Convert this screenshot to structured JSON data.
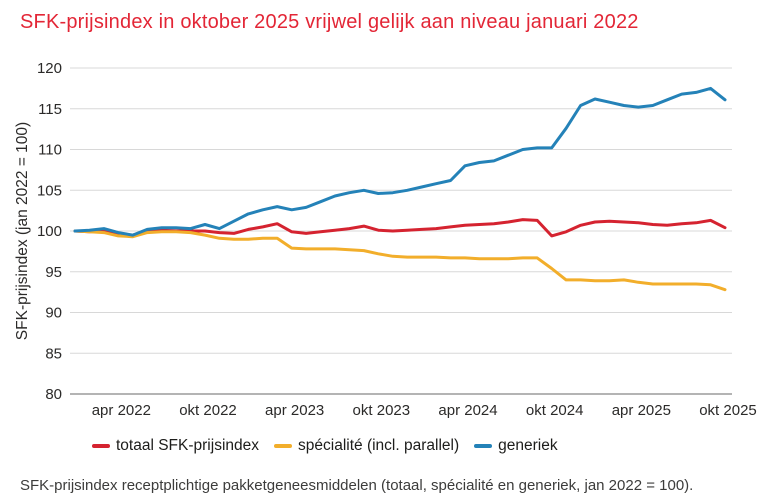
{
  "title": "SFK-prijsindex in oktober 2025 vrijwel gelijk aan niveau januari 2022",
  "footer": "SFK-prijsindex receptplichtige pakketgeneesmiddelen (totaal, spécialité en generiek, jan 2022 = 100).",
  "colors": {
    "title_red": "#e32636",
    "totaal": "#d52330",
    "specialite": "#f2ae2b",
    "generiek": "#2482b8",
    "grid": "#d8d8d8",
    "axis": "#9c9c9c",
    "text": "#2b2a29"
  },
  "chart_data": {
    "type": "line",
    "title": "SFK-prijsindex in oktober 2025 vrijwel gelijk aan niveau januari 2022",
    "xlabel": "",
    "ylabel": "SFK-prijsindex (jan 2022 = 100)",
    "ylim": [
      80,
      120
    ],
    "yticks": [
      80,
      85,
      90,
      95,
      100,
      105,
      110,
      115,
      120
    ],
    "grid": true,
    "legend_position": "bottom",
    "x": [
      "jan 2022",
      "feb 2022",
      "mrt 2022",
      "apr 2022",
      "mei 2022",
      "jun 2022",
      "jul 2022",
      "aug 2022",
      "sep 2022",
      "okt 2022",
      "nov 2022",
      "dec 2022",
      "jan 2023",
      "feb 2023",
      "mrt 2023",
      "apr 2023",
      "mei 2023",
      "jun 2023",
      "jul 2023",
      "aug 2023",
      "sep 2023",
      "okt 2023",
      "nov 2023",
      "dec 2023",
      "jan 2024",
      "feb 2024",
      "mrt 2024",
      "apr 2024",
      "mei 2024",
      "jun 2024",
      "jul 2024",
      "aug 2024",
      "sep 2024",
      "okt 2024",
      "nov 2024",
      "dec 2024",
      "jan 2025",
      "feb 2025",
      "mrt 2025",
      "apr 2025",
      "mei 2025",
      "jun 2025",
      "jul 2025",
      "aug 2025",
      "sep 2025",
      "okt 2025"
    ],
    "xticks": [
      {
        "label": "apr 2022",
        "index": 3
      },
      {
        "label": "okt 2022",
        "index": 9
      },
      {
        "label": "apr 2023",
        "index": 15
      },
      {
        "label": "okt 2023",
        "index": 21
      },
      {
        "label": "apr 2024",
        "index": 27
      },
      {
        "label": "okt 2024",
        "index": 33
      },
      {
        "label": "apr 2025",
        "index": 39
      },
      {
        "label": "okt 2025",
        "index": 45
      }
    ],
    "series": [
      {
        "name": "totaal SFK-prijsindex",
        "color_key": "totaal",
        "values": [
          100.0,
          99.9,
          100.0,
          99.6,
          99.5,
          100.0,
          100.1,
          100.0,
          100.0,
          100.0,
          99.8,
          99.7,
          100.2,
          100.5,
          100.9,
          99.9,
          99.7,
          99.9,
          100.1,
          100.3,
          100.6,
          100.1,
          100.0,
          100.1,
          100.2,
          100.3,
          100.5,
          100.7,
          100.8,
          100.9,
          101.1,
          101.4,
          101.3,
          99.4,
          99.9,
          100.7,
          101.1,
          101.2,
          101.1,
          101.0,
          100.8,
          100.7,
          100.9,
          101.0,
          101.3,
          100.4
        ]
      },
      {
        "name": "spécialité (incl. parallel)",
        "color_key": "specialite",
        "values": [
          100.0,
          99.9,
          99.8,
          99.4,
          99.3,
          99.8,
          99.9,
          99.9,
          99.8,
          99.5,
          99.1,
          99.0,
          99.0,
          99.1,
          99.1,
          97.9,
          97.8,
          97.8,
          97.8,
          97.7,
          97.6,
          97.2,
          96.9,
          96.8,
          96.8,
          96.8,
          96.7,
          96.7,
          96.6,
          96.6,
          96.6,
          96.7,
          96.7,
          95.4,
          94.0,
          94.0,
          93.9,
          93.9,
          94.0,
          93.7,
          93.5,
          93.5,
          93.5,
          93.5,
          93.4,
          92.8
        ]
      },
      {
        "name": "generiek",
        "color_key": "generiek",
        "values": [
          100.0,
          100.1,
          100.3,
          99.8,
          99.5,
          100.2,
          100.4,
          100.4,
          100.3,
          100.8,
          100.3,
          101.2,
          102.1,
          102.6,
          103.0,
          102.6,
          102.9,
          103.6,
          104.3,
          104.7,
          105.0,
          104.6,
          104.7,
          105.0,
          105.4,
          105.8,
          106.2,
          108.0,
          108.4,
          108.6,
          109.3,
          110.0,
          110.2,
          110.2,
          112.6,
          115.4,
          116.2,
          115.8,
          115.4,
          115.2,
          115.4,
          116.1,
          116.8,
          117.0,
          117.5,
          116.1
        ]
      }
    ]
  },
  "legend": {
    "items": [
      {
        "label": "totaal SFK-prijsindex"
      },
      {
        "label": "spécialité (incl. parallel)"
      },
      {
        "label": "generiek"
      }
    ]
  }
}
